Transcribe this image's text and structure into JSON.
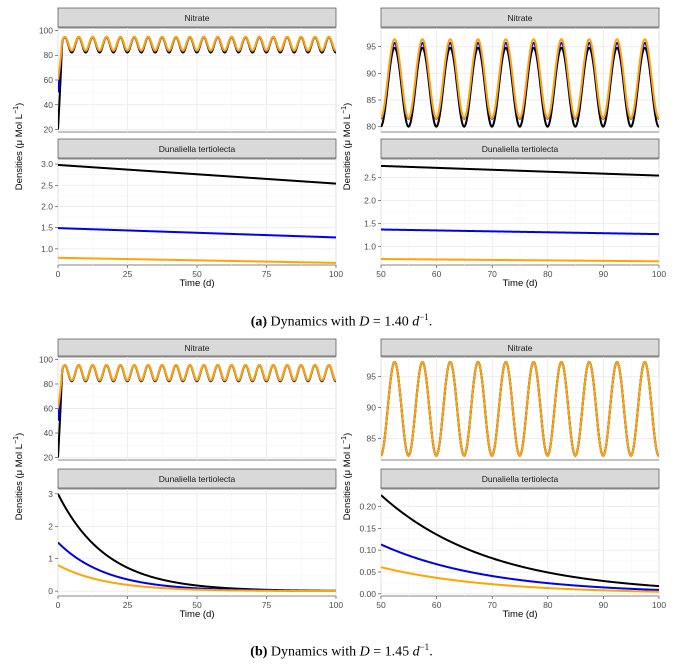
{
  "figure": {
    "ylabel": "Densities (μ Mol L",
    "ylabel_sup": "−1",
    "ylabel_end": ")",
    "xlabel": "Time (d)"
  },
  "captions": [
    {
      "tag": "(a)",
      "text": "Dynamics with",
      "var": "D",
      "eq": "= 1.40",
      "unit": "d",
      "exp": "−1",
      "end": "."
    },
    {
      "tag": "(b)",
      "text": "Dynamics with",
      "var": "D",
      "eq": "= 1.45",
      "unit": "d",
      "exp": "−1",
      "end": "."
    }
  ],
  "colors": {
    "black": "#000000",
    "blue": "#0000ee",
    "orange": "#ffa500",
    "strip": "#d9d9d9",
    "grid": "#ebebeb"
  },
  "chart_data": [
    {
      "id": "a-left",
      "type": "line",
      "xlim": [
        0,
        100
      ],
      "xticks": [
        "0",
        "25",
        "50",
        "75",
        "100"
      ],
      "panels": [
        {
          "title": "Nitrate",
          "ylim": [
            18,
            102
          ],
          "yticks": [
            20,
            40,
            60,
            80,
            100
          ],
          "series": [
            {
              "name": "black",
              "color": "#000000",
              "start": 20,
              "center": 88.4,
              "amp": 6.2,
              "period": 5.0
            },
            {
              "name": "blue",
              "color": "#0000ee",
              "start": 50,
              "center": 89.0,
              "amp": 5.8,
              "period": 5.0
            },
            {
              "name": "orange",
              "color": "#ffa500",
              "start": 60,
              "center": 89.3,
              "amp": 5.6,
              "period": 5.0
            }
          ]
        },
        {
          "title": "Dunaliella tertiolecta",
          "ylim": [
            0.62,
            3.12
          ],
          "yticks": [
            1.0,
            1.5,
            2.0,
            2.5,
            3.0
          ],
          "series": [
            {
              "name": "black",
              "color": "#000000",
              "y0": 2.98,
              "y1": 2.54
            },
            {
              "name": "blue",
              "color": "#0000ee",
              "y0": 1.49,
              "y1": 1.27
            },
            {
              "name": "orange",
              "color": "#ffa500",
              "y0": 0.79,
              "y1": 0.67
            }
          ]
        }
      ]
    },
    {
      "id": "a-right",
      "type": "line",
      "xlim": [
        50,
        100
      ],
      "xticks": [
        "50",
        "60",
        "70",
        "80",
        "90",
        "100"
      ],
      "panels": [
        {
          "title": "Nitrate",
          "ylim": [
            79,
            98.5
          ],
          "yticks": [
            80,
            85,
            90,
            95
          ],
          "series": [
            {
              "name": "black",
              "color": "#000000",
              "center": 87.4,
              "amp": 7.4,
              "period": 5.0
            },
            {
              "name": "blue",
              "color": "#0000ee",
              "center": 88.6,
              "amp": 7.1,
              "period": 5.0
            },
            {
              "name": "orange",
              "color": "#ffa500",
              "center": 89.0,
              "amp": 7.4,
              "period": 5.0
            }
          ]
        },
        {
          "title": "Dunaliella tertiolecta",
          "ylim": [
            0.6,
            2.9
          ],
          "yticks": [
            1.0,
            1.5,
            2.0,
            2.5
          ],
          "series": [
            {
              "name": "black",
              "color": "#000000",
              "y0": 2.75,
              "y1": 2.54
            },
            {
              "name": "blue",
              "color": "#0000ee",
              "y0": 1.37,
              "y1": 1.27
            },
            {
              "name": "orange",
              "color": "#ffa500",
              "y0": 0.73,
              "y1": 0.68
            }
          ]
        }
      ]
    },
    {
      "id": "b-left",
      "type": "line",
      "xlim": [
        0,
        100
      ],
      "xticks": [
        "0",
        "25",
        "50",
        "75",
        "100"
      ],
      "panels": [
        {
          "title": "Nitrate",
          "ylim": [
            18,
            102
          ],
          "yticks": [
            20,
            40,
            60,
            80,
            100
          ],
          "series": [
            {
              "name": "black",
              "color": "#000000",
              "start": 20,
              "center": 88.8,
              "amp": 6.6,
              "period": 5.0
            },
            {
              "name": "blue",
              "color": "#0000ee",
              "start": 50,
              "center": 89.0,
              "amp": 6.4,
              "period": 5.0
            },
            {
              "name": "orange",
              "color": "#ffa500",
              "start": 60,
              "center": 89.2,
              "amp": 6.3,
              "period": 5.0
            }
          ]
        },
        {
          "title": "Dunaliella tertiolecta",
          "ylim": [
            -0.15,
            3.15
          ],
          "yticks": [
            0,
            1,
            2,
            3
          ],
          "series": [
            {
              "name": "black",
              "color": "#000000",
              "y0": 3.0,
              "k": 0.057
            },
            {
              "name": "blue",
              "color": "#0000ee",
              "y0": 1.5,
              "k": 0.057
            },
            {
              "name": "orange",
              "color": "#ffa500",
              "y0": 0.8,
              "k": 0.057
            }
          ]
        }
      ]
    },
    {
      "id": "b-right",
      "type": "line",
      "xlim": [
        50,
        100
      ],
      "xticks": [
        "50",
        "60",
        "70",
        "80",
        "90",
        "100"
      ],
      "panels": [
        {
          "title": "Nitrate",
          "ylim": [
            81.5,
            98.2
          ],
          "yticks": [
            85,
            90,
            95
          ],
          "series": [
            {
              "name": "black",
              "color": "#000000",
              "center": 89.8,
              "amp": 7.6,
              "period": 5.0
            },
            {
              "name": "blue",
              "color": "#0000ee",
              "center": 89.8,
              "amp": 7.6,
              "period": 5.0
            },
            {
              "name": "orange",
              "color": "#ffa500",
              "center": 89.8,
              "amp": 7.6,
              "period": 5.0
            }
          ]
        },
        {
          "title": "Dunaliella tertiolecta",
          "ylim": [
            -0.005,
            0.24
          ],
          "yticks": [
            0.0,
            0.05,
            0.1,
            0.15,
            0.2
          ],
          "series": [
            {
              "name": "black",
              "color": "#000000",
              "y0": 0.226,
              "k": 0.051
            },
            {
              "name": "blue",
              "color": "#0000ee",
              "y0": 0.113,
              "k": 0.051
            },
            {
              "name": "orange",
              "color": "#ffa500",
              "y0": 0.061,
              "k": 0.051
            }
          ]
        }
      ]
    }
  ]
}
